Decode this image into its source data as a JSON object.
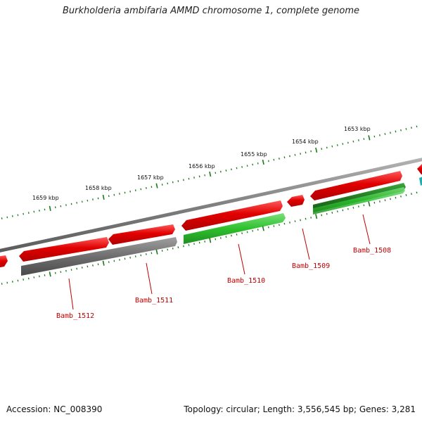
{
  "title": "Burkholderia ambifaria AMMD chromosome 1, complete genome",
  "footer": {
    "accession": "Accession: NC_008390",
    "summary": "Topology: circular; Length: 3,556,545 bp; Genes: 3,281"
  },
  "kbp_labels": [
    "1659 kbp",
    "1658 kbp",
    "1657 kbp",
    "1656 kbp",
    "1655 kbp",
    "1654 kbp",
    "1653 kbp"
  ],
  "gene_labels": [
    "Bamb_1512",
    "Bamb_1511",
    "Bamb_1510",
    "Bamb_1509",
    "Bamb_1508"
  ],
  "colors": {
    "forward_cds": "#e00000",
    "reverse_green": "#2ec02e",
    "reverse_dark_green": "#2a8a2a",
    "reverse_gray": "#6e6e6e",
    "backbone": "#8a8a8a",
    "ticks": "#1a7a1a",
    "label": "#c00000",
    "teal": "#1ab0b0"
  }
}
